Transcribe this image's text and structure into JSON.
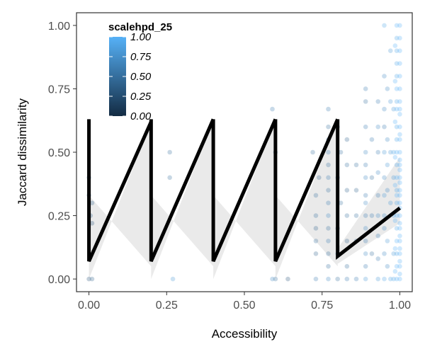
{
  "chart_data": {
    "type": "scatter",
    "xlabel": "Accessibility",
    "ylabel": "Jaccard dissimilarity",
    "xlim": [
      -0.04,
      1.04
    ],
    "ylim": [
      -0.05,
      1.05
    ],
    "x_ticks": [
      0.0,
      0.25,
      0.5,
      0.75,
      1.0
    ],
    "x_tick_labels": [
      "0.00",
      "0.25",
      "0.50",
      "0.75",
      "1.00"
    ],
    "y_ticks": [
      0.0,
      0.25,
      0.5,
      0.75,
      1.0
    ],
    "y_tick_labels": [
      "0.00",
      "0.25",
      "0.50",
      "0.75",
      "1.00"
    ],
    "grid": false,
    "point_color": "#56B1F7",
    "line_color": "#000000",
    "band_color": "#d9d9d9",
    "legend": {
      "title": "scalehpd_25",
      "placement": "top-left",
      "breaks": [
        1.0,
        0.75,
        0.5,
        0.25,
        0.0
      ],
      "labels": [
        "1.00",
        "0.75",
        "0.50",
        "0.25",
        "0.00"
      ],
      "color_low": "#132B43",
      "color_high": "#56B1F7"
    },
    "smooth_segments": [
      {
        "x0": 0.0,
        "x1": 0.2,
        "y_start": 0.63,
        "y_lo": 0.07,
        "y_hi": 0.62,
        "band_lo": [
          0.33,
          0.05
        ],
        "band_hi": [
          0.0,
          0.62
        ]
      },
      {
        "x0": 0.2,
        "x1": 0.4,
        "y_start": 0.63,
        "y_lo": 0.07,
        "y_hi": 0.63,
        "band_lo": [
          0.33,
          0.05
        ],
        "band_hi": [
          0.0,
          0.63
        ]
      },
      {
        "x0": 0.4,
        "x1": 0.6,
        "y_start": 0.63,
        "y_lo": 0.07,
        "y_hi": 0.63,
        "band_lo": [
          0.33,
          0.05
        ],
        "band_hi": [
          0.0,
          0.63
        ]
      },
      {
        "x0": 0.6,
        "x1": 0.8,
        "y_start": 0.63,
        "y_lo": 0.07,
        "y_hi": 0.63,
        "band_lo": [
          0.33,
          0.05
        ],
        "band_hi": [
          0.0,
          0.63
        ]
      },
      {
        "x0": 0.8,
        "x1": 1.0,
        "y_start": 0.63,
        "y_lo": 0.09,
        "y_hi": 0.28,
        "band_lo": [
          0.06,
          0.22
        ],
        "band_hi": [
          0.12,
          0.48
        ]
      }
    ],
    "points": [
      [
        0.0,
        0.0,
        0.3
      ],
      [
        0.01,
        0.0,
        0.4
      ],
      [
        0.0,
        0.4,
        0.5
      ],
      [
        0.005,
        0.25,
        0.4
      ],
      [
        0.01,
        0.22,
        0.3
      ],
      [
        0.0,
        0.33,
        0.5
      ],
      [
        0.01,
        0.3,
        0.4
      ],
      [
        0.26,
        0.5,
        0.5
      ],
      [
        0.27,
        0.0,
        0.8
      ],
      [
        0.26,
        0.4,
        0.5
      ],
      [
        0.59,
        0.67,
        0.6
      ],
      [
        0.6,
        0.5,
        0.4
      ],
      [
        0.59,
        0.0,
        0.7
      ],
      [
        0.64,
        0.0,
        0.3
      ],
      [
        0.6,
        0.0,
        0.5
      ],
      [
        0.73,
        0.0,
        0.6
      ],
      [
        0.73,
        0.25,
        0.5
      ],
      [
        0.73,
        0.15,
        0.5
      ],
      [
        0.73,
        0.1,
        0.4
      ],
      [
        0.73,
        0.33,
        0.5
      ],
      [
        0.74,
        0.4,
        0.4
      ],
      [
        0.72,
        0.5,
        0.5
      ],
      [
        0.73,
        0.2,
        0.4
      ],
      [
        0.77,
        0.67,
        0.6
      ],
      [
        0.77,
        0.6,
        0.5
      ],
      [
        0.77,
        0.55,
        0.5
      ],
      [
        0.77,
        0.5,
        0.6
      ],
      [
        0.77,
        0.45,
        0.5
      ],
      [
        0.77,
        0.4,
        0.6
      ],
      [
        0.77,
        0.35,
        0.5
      ],
      [
        0.77,
        0.3,
        0.6
      ],
      [
        0.77,
        0.25,
        0.7
      ],
      [
        0.77,
        0.2,
        0.5
      ],
      [
        0.77,
        0.15,
        0.6
      ],
      [
        0.77,
        0.1,
        0.5
      ],
      [
        0.77,
        0.05,
        0.5
      ],
      [
        0.77,
        0.0,
        0.7
      ],
      [
        0.8,
        0.6,
        0.6
      ],
      [
        0.81,
        0.5,
        0.5
      ],
      [
        0.8,
        0.4,
        0.6
      ],
      [
        0.81,
        0.3,
        0.5
      ],
      [
        0.8,
        0.2,
        0.5
      ],
      [
        0.8,
        0.1,
        0.6
      ],
      [
        0.8,
        0.0,
        0.5
      ],
      [
        0.83,
        0.55,
        0.4
      ],
      [
        0.83,
        0.45,
        0.5
      ],
      [
        0.83,
        0.35,
        0.4
      ],
      [
        0.83,
        0.25,
        0.5
      ],
      [
        0.83,
        0.15,
        0.4
      ],
      [
        0.83,
        0.05,
        0.5
      ],
      [
        0.83,
        0.0,
        0.6
      ],
      [
        0.86,
        0.45,
        0.5
      ],
      [
        0.86,
        0.35,
        0.4
      ],
      [
        0.86,
        0.25,
        0.5
      ],
      [
        0.86,
        0.15,
        0.5
      ],
      [
        0.86,
        0.0,
        0.6
      ],
      [
        0.89,
        0.75,
        0.6
      ],
      [
        0.89,
        0.7,
        0.5
      ],
      [
        0.89,
        0.6,
        0.6
      ],
      [
        0.89,
        0.5,
        0.7
      ],
      [
        0.89,
        0.45,
        0.6
      ],
      [
        0.89,
        0.4,
        0.7
      ],
      [
        0.89,
        0.33,
        0.6
      ],
      [
        0.89,
        0.3,
        0.7
      ],
      [
        0.89,
        0.25,
        0.6
      ],
      [
        0.89,
        0.2,
        0.7
      ],
      [
        0.89,
        0.15,
        0.6
      ],
      [
        0.89,
        0.1,
        0.7
      ],
      [
        0.89,
        0.05,
        0.6
      ],
      [
        0.89,
        0.0,
        0.8
      ],
      [
        0.91,
        0.55,
        0.6
      ],
      [
        0.91,
        0.4,
        0.5
      ],
      [
        0.91,
        0.25,
        0.6
      ],
      [
        0.91,
        0.1,
        0.5
      ],
      [
        0.93,
        0.7,
        0.6
      ],
      [
        0.93,
        0.6,
        0.7
      ],
      [
        0.93,
        0.5,
        0.6
      ],
      [
        0.93,
        0.42,
        0.7
      ],
      [
        0.93,
        0.33,
        0.6
      ],
      [
        0.93,
        0.25,
        0.7
      ],
      [
        0.93,
        0.17,
        0.6
      ],
      [
        0.93,
        0.08,
        0.6
      ],
      [
        0.93,
        0.0,
        0.8
      ],
      [
        0.95,
        0.8,
        0.7
      ],
      [
        0.95,
        0.67,
        0.7
      ],
      [
        0.95,
        0.6,
        0.6
      ],
      [
        0.95,
        0.5,
        0.8
      ],
      [
        0.95,
        0.4,
        0.7
      ],
      [
        0.95,
        0.33,
        0.8
      ],
      [
        0.95,
        0.25,
        0.7
      ],
      [
        0.95,
        0.2,
        0.7
      ],
      [
        0.95,
        0.1,
        0.7
      ],
      [
        0.95,
        0.0,
        0.9
      ],
      [
        0.96,
        0.75,
        0.7
      ],
      [
        0.96,
        0.55,
        0.7
      ],
      [
        0.96,
        0.45,
        0.8
      ],
      [
        0.96,
        0.35,
        0.7
      ],
      [
        0.96,
        0.15,
        0.8
      ],
      [
        0.96,
        0.05,
        0.7
      ],
      [
        0.95,
        1.0,
        0.9
      ],
      [
        0.97,
        0.9,
        0.8
      ],
      [
        0.97,
        0.7,
        0.8
      ],
      [
        0.97,
        0.5,
        0.8
      ],
      [
        0.97,
        0.3,
        0.8
      ],
      [
        0.97,
        0.0,
        0.9
      ],
      [
        0.98,
        0.67,
        0.8
      ],
      [
        0.98,
        0.5,
        0.9
      ],
      [
        0.98,
        0.4,
        0.8
      ],
      [
        0.98,
        0.25,
        0.9
      ],
      [
        0.98,
        0.1,
        0.8
      ],
      [
        0.98,
        0.0,
        0.9
      ],
      [
        0.99,
        1.0,
        1.0
      ],
      [
        0.99,
        0.95,
        0.9
      ],
      [
        0.99,
        0.9,
        0.9
      ],
      [
        0.99,
        0.85,
        0.9
      ],
      [
        0.99,
        0.8,
        0.9
      ],
      [
        0.99,
        0.75,
        1.0
      ],
      [
        0.99,
        0.7,
        0.9
      ],
      [
        0.99,
        0.67,
        1.0
      ],
      [
        0.99,
        0.6,
        0.9
      ],
      [
        0.99,
        0.55,
        0.9
      ],
      [
        0.99,
        0.5,
        1.0
      ],
      [
        0.99,
        0.45,
        0.9
      ],
      [
        0.99,
        0.4,
        1.0
      ],
      [
        0.99,
        0.35,
        0.9
      ],
      [
        0.99,
        0.33,
        1.0
      ],
      [
        0.99,
        0.3,
        0.9
      ],
      [
        0.99,
        0.25,
        1.0
      ],
      [
        0.99,
        0.2,
        0.9
      ],
      [
        0.99,
        0.15,
        1.0
      ],
      [
        0.99,
        0.1,
        0.9
      ],
      [
        0.99,
        0.05,
        1.0
      ],
      [
        0.99,
        0.0,
        1.0
      ],
      [
        1.0,
        1.0,
        1.0
      ],
      [
        1.0,
        0.95,
        1.0
      ],
      [
        1.0,
        0.9,
        1.0
      ],
      [
        1.0,
        0.85,
        1.0
      ],
      [
        1.0,
        0.8,
        1.0
      ],
      [
        1.0,
        0.75,
        1.0
      ],
      [
        1.0,
        0.7,
        1.0
      ],
      [
        1.0,
        0.67,
        1.0
      ],
      [
        1.0,
        0.65,
        1.0
      ],
      [
        1.0,
        0.6,
        1.0
      ],
      [
        1.0,
        0.57,
        1.0
      ],
      [
        1.0,
        0.55,
        1.0
      ],
      [
        1.0,
        0.5,
        1.0
      ],
      [
        1.0,
        0.47,
        1.0
      ],
      [
        1.0,
        0.45,
        1.0
      ],
      [
        1.0,
        0.43,
        1.0
      ],
      [
        1.0,
        0.4,
        1.0
      ],
      [
        1.0,
        0.38,
        1.0
      ],
      [
        1.0,
        0.35,
        1.0
      ],
      [
        1.0,
        0.33,
        1.0
      ],
      [
        1.0,
        0.3,
        1.0
      ],
      [
        1.0,
        0.28,
        1.0
      ],
      [
        1.0,
        0.25,
        1.0
      ],
      [
        1.0,
        0.22,
        1.0
      ],
      [
        1.0,
        0.2,
        1.0
      ],
      [
        1.0,
        0.17,
        1.0
      ],
      [
        1.0,
        0.15,
        1.0
      ],
      [
        1.0,
        0.12,
        1.0
      ],
      [
        1.0,
        0.1,
        1.0
      ],
      [
        1.0,
        0.07,
        1.0
      ],
      [
        1.0,
        0.05,
        1.0
      ],
      [
        1.0,
        0.02,
        1.0
      ],
      [
        1.0,
        0.0,
        1.0
      ],
      [
        0.985,
        0.92,
        1.0
      ],
      [
        0.985,
        0.78,
        1.0
      ],
      [
        0.985,
        0.62,
        1.0
      ],
      [
        0.985,
        0.48,
        1.0
      ],
      [
        0.985,
        0.37,
        1.0
      ],
      [
        0.985,
        0.23,
        1.0
      ],
      [
        0.985,
        0.12,
        1.0
      ],
      [
        0.985,
        0.03,
        1.0
      ]
    ]
  }
}
